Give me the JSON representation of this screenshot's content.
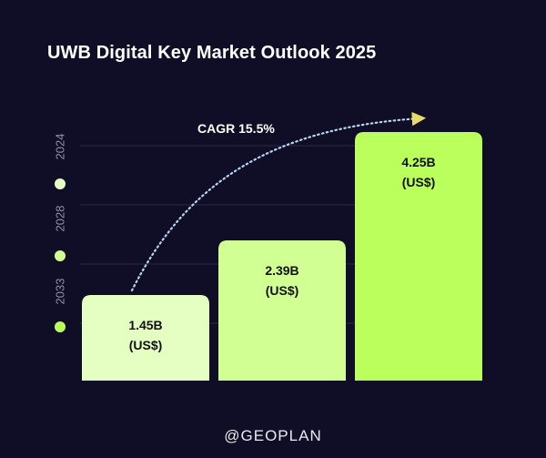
{
  "title": "UWB Digital Key Market Outlook 2025",
  "footer": "@GEOPLAN",
  "chart_data": {
    "type": "bar",
    "title": "UWB Digital Key Market Outlook 2025",
    "categories": [
      "2024",
      "2028",
      "2033"
    ],
    "values": [
      1.45,
      2.39,
      4.25
    ],
    "value_labels": [
      [
        "1.45B",
        "(US$)"
      ],
      [
        "2.39B",
        "(US$)"
      ],
      [
        "4.25B",
        "(US$)"
      ]
    ],
    "unit": "B (US$)",
    "annotation": "CAGR 15.5%",
    "grid": true,
    "legend": "vertical along left side",
    "colors": {
      "bars": [
        "#e4ffc1",
        "#d2ff93",
        "#bbff5c"
      ],
      "markers": [
        "#e4ffc1",
        "#d2ff93",
        "#bbff5c"
      ],
      "gridline": "#2a2946",
      "arrow": "#b6d7f0",
      "arrowhead": "#e7dc6a",
      "axis_text": "#8f8fa3"
    }
  }
}
